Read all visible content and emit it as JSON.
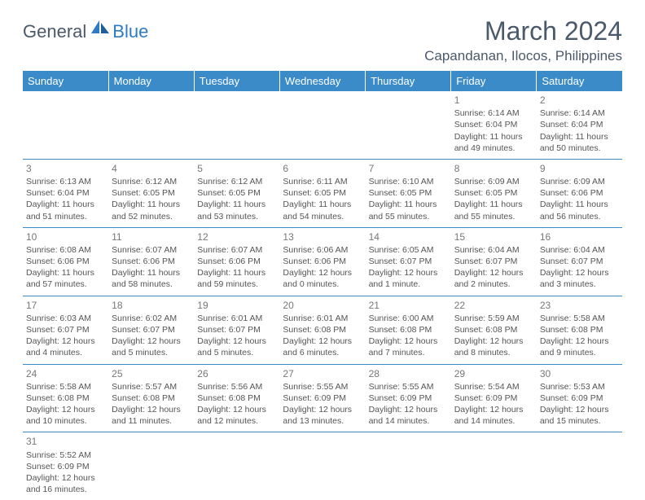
{
  "logo": {
    "part1": "General",
    "part2": "Blue"
  },
  "title": "March 2024",
  "location": "Capandanan, Ilocos, Philippines",
  "header_color": "#3b8bc9",
  "dayhead_text_color": "#ffffff",
  "border_color": "#3b8bc9",
  "text_color": "#555555",
  "daynames": [
    "Sunday",
    "Monday",
    "Tuesday",
    "Wednesday",
    "Thursday",
    "Friday",
    "Saturday"
  ],
  "weeks": [
    [
      null,
      null,
      null,
      null,
      null,
      {
        "n": "1",
        "sr": "Sunrise: 6:14 AM",
        "ss": "Sunset: 6:04 PM",
        "dl1": "Daylight: 11 hours",
        "dl2": "and 49 minutes."
      },
      {
        "n": "2",
        "sr": "Sunrise: 6:14 AM",
        "ss": "Sunset: 6:04 PM",
        "dl1": "Daylight: 11 hours",
        "dl2": "and 50 minutes."
      }
    ],
    [
      {
        "n": "3",
        "sr": "Sunrise: 6:13 AM",
        "ss": "Sunset: 6:04 PM",
        "dl1": "Daylight: 11 hours",
        "dl2": "and 51 minutes."
      },
      {
        "n": "4",
        "sr": "Sunrise: 6:12 AM",
        "ss": "Sunset: 6:05 PM",
        "dl1": "Daylight: 11 hours",
        "dl2": "and 52 minutes."
      },
      {
        "n": "5",
        "sr": "Sunrise: 6:12 AM",
        "ss": "Sunset: 6:05 PM",
        "dl1": "Daylight: 11 hours",
        "dl2": "and 53 minutes."
      },
      {
        "n": "6",
        "sr": "Sunrise: 6:11 AM",
        "ss": "Sunset: 6:05 PM",
        "dl1": "Daylight: 11 hours",
        "dl2": "and 54 minutes."
      },
      {
        "n": "7",
        "sr": "Sunrise: 6:10 AM",
        "ss": "Sunset: 6:05 PM",
        "dl1": "Daylight: 11 hours",
        "dl2": "and 55 minutes."
      },
      {
        "n": "8",
        "sr": "Sunrise: 6:09 AM",
        "ss": "Sunset: 6:05 PM",
        "dl1": "Daylight: 11 hours",
        "dl2": "and 55 minutes."
      },
      {
        "n": "9",
        "sr": "Sunrise: 6:09 AM",
        "ss": "Sunset: 6:06 PM",
        "dl1": "Daylight: 11 hours",
        "dl2": "and 56 minutes."
      }
    ],
    [
      {
        "n": "10",
        "sr": "Sunrise: 6:08 AM",
        "ss": "Sunset: 6:06 PM",
        "dl1": "Daylight: 11 hours",
        "dl2": "and 57 minutes."
      },
      {
        "n": "11",
        "sr": "Sunrise: 6:07 AM",
        "ss": "Sunset: 6:06 PM",
        "dl1": "Daylight: 11 hours",
        "dl2": "and 58 minutes."
      },
      {
        "n": "12",
        "sr": "Sunrise: 6:07 AM",
        "ss": "Sunset: 6:06 PM",
        "dl1": "Daylight: 11 hours",
        "dl2": "and 59 minutes."
      },
      {
        "n": "13",
        "sr": "Sunrise: 6:06 AM",
        "ss": "Sunset: 6:06 PM",
        "dl1": "Daylight: 12 hours",
        "dl2": "and 0 minutes."
      },
      {
        "n": "14",
        "sr": "Sunrise: 6:05 AM",
        "ss": "Sunset: 6:07 PM",
        "dl1": "Daylight: 12 hours",
        "dl2": "and 1 minute."
      },
      {
        "n": "15",
        "sr": "Sunrise: 6:04 AM",
        "ss": "Sunset: 6:07 PM",
        "dl1": "Daylight: 12 hours",
        "dl2": "and 2 minutes."
      },
      {
        "n": "16",
        "sr": "Sunrise: 6:04 AM",
        "ss": "Sunset: 6:07 PM",
        "dl1": "Daylight: 12 hours",
        "dl2": "and 3 minutes."
      }
    ],
    [
      {
        "n": "17",
        "sr": "Sunrise: 6:03 AM",
        "ss": "Sunset: 6:07 PM",
        "dl1": "Daylight: 12 hours",
        "dl2": "and 4 minutes."
      },
      {
        "n": "18",
        "sr": "Sunrise: 6:02 AM",
        "ss": "Sunset: 6:07 PM",
        "dl1": "Daylight: 12 hours",
        "dl2": "and 5 minutes."
      },
      {
        "n": "19",
        "sr": "Sunrise: 6:01 AM",
        "ss": "Sunset: 6:07 PM",
        "dl1": "Daylight: 12 hours",
        "dl2": "and 5 minutes."
      },
      {
        "n": "20",
        "sr": "Sunrise: 6:01 AM",
        "ss": "Sunset: 6:08 PM",
        "dl1": "Daylight: 12 hours",
        "dl2": "and 6 minutes."
      },
      {
        "n": "21",
        "sr": "Sunrise: 6:00 AM",
        "ss": "Sunset: 6:08 PM",
        "dl1": "Daylight: 12 hours",
        "dl2": "and 7 minutes."
      },
      {
        "n": "22",
        "sr": "Sunrise: 5:59 AM",
        "ss": "Sunset: 6:08 PM",
        "dl1": "Daylight: 12 hours",
        "dl2": "and 8 minutes."
      },
      {
        "n": "23",
        "sr": "Sunrise: 5:58 AM",
        "ss": "Sunset: 6:08 PM",
        "dl1": "Daylight: 12 hours",
        "dl2": "and 9 minutes."
      }
    ],
    [
      {
        "n": "24",
        "sr": "Sunrise: 5:58 AM",
        "ss": "Sunset: 6:08 PM",
        "dl1": "Daylight: 12 hours",
        "dl2": "and 10 minutes."
      },
      {
        "n": "25",
        "sr": "Sunrise: 5:57 AM",
        "ss": "Sunset: 6:08 PM",
        "dl1": "Daylight: 12 hours",
        "dl2": "and 11 minutes."
      },
      {
        "n": "26",
        "sr": "Sunrise: 5:56 AM",
        "ss": "Sunset: 6:08 PM",
        "dl1": "Daylight: 12 hours",
        "dl2": "and 12 minutes."
      },
      {
        "n": "27",
        "sr": "Sunrise: 5:55 AM",
        "ss": "Sunset: 6:09 PM",
        "dl1": "Daylight: 12 hours",
        "dl2": "and 13 minutes."
      },
      {
        "n": "28",
        "sr": "Sunrise: 5:55 AM",
        "ss": "Sunset: 6:09 PM",
        "dl1": "Daylight: 12 hours",
        "dl2": "and 14 minutes."
      },
      {
        "n": "29",
        "sr": "Sunrise: 5:54 AM",
        "ss": "Sunset: 6:09 PM",
        "dl1": "Daylight: 12 hours",
        "dl2": "and 14 minutes."
      },
      {
        "n": "30",
        "sr": "Sunrise: 5:53 AM",
        "ss": "Sunset: 6:09 PM",
        "dl1": "Daylight: 12 hours",
        "dl2": "and 15 minutes."
      }
    ],
    [
      {
        "n": "31",
        "sr": "Sunrise: 5:52 AM",
        "ss": "Sunset: 6:09 PM",
        "dl1": "Daylight: 12 hours",
        "dl2": "and 16 minutes."
      },
      null,
      null,
      null,
      null,
      null,
      null
    ]
  ]
}
